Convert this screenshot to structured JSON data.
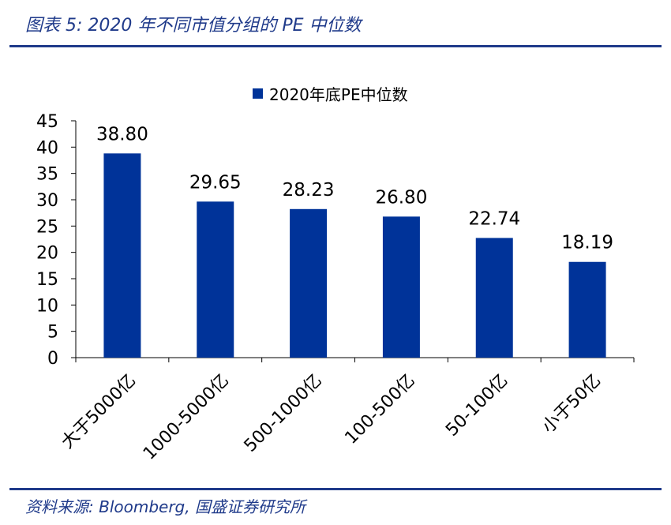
{
  "header": {
    "title": "图表 5:  2020 年不同市值分组的 PE 中位数"
  },
  "footer": {
    "source": "资料来源:  Bloomberg,  国盛证券研究所"
  },
  "colors": {
    "accent": "#1f3a8a",
    "bar": "#003399"
  },
  "chart_data": {
    "type": "bar",
    "categories": [
      "大于5000亿",
      "1000-5000亿",
      "500-1000亿",
      "100-500亿",
      "50-100亿",
      "小于50亿"
    ],
    "series": [
      {
        "name": "2020年底PE中位数",
        "values": [
          38.8,
          29.65,
          28.23,
          26.8,
          22.74,
          18.19
        ],
        "labels": [
          "38.80",
          "29.65",
          "28.23",
          "26.80",
          "22.74",
          "18.19"
        ]
      }
    ],
    "yticks": [
      "0",
      "5",
      "10",
      "15",
      "20",
      "25",
      "30",
      "35",
      "40",
      "45"
    ],
    "ylim": [
      0,
      45
    ],
    "grid": false,
    "legend_position": "top-center"
  }
}
